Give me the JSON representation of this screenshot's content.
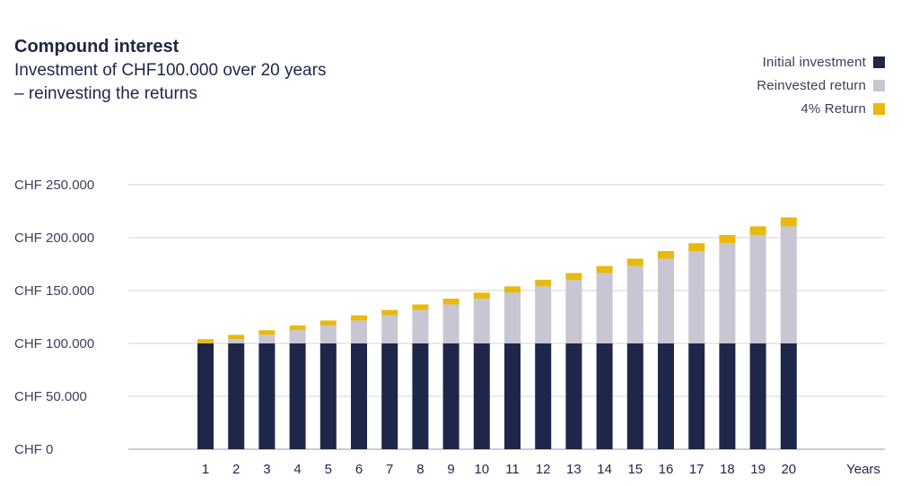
{
  "chart_data": {
    "type": "bar",
    "stacked": true,
    "title": "Compound interest",
    "subtitle_lines": [
      "Investment of CHF100.000 over 20 years",
      "– reinvesting the returns"
    ],
    "xlabel": "Years",
    "ylabel": "",
    "ylim": [
      0,
      250000
    ],
    "yticks": [
      0,
      50000,
      100000,
      150000,
      200000,
      250000
    ],
    "ytick_labels": [
      "CHF 0",
      "CHF 50.000",
      "CHF 100.000",
      "CHF 150.000",
      "CHF 200.000",
      "CHF 250.000"
    ],
    "grid": true,
    "legend_position": "top-right",
    "categories": [
      "1",
      "2",
      "3",
      "4",
      "5",
      "6",
      "7",
      "8",
      "9",
      "10",
      "11",
      "12",
      "13",
      "14",
      "15",
      "16",
      "17",
      "18",
      "19",
      "20"
    ],
    "series": [
      {
        "name": "Initial investment",
        "color": "#1e2749",
        "values": [
          100000,
          100000,
          100000,
          100000,
          100000,
          100000,
          100000,
          100000,
          100000,
          100000,
          100000,
          100000,
          100000,
          100000,
          100000,
          100000,
          100000,
          100000,
          100000,
          100000
        ]
      },
      {
        "name": "Reinvested return",
        "color": "#c8c6d3",
        "values": [
          0,
          4000,
          8160,
          12486,
          16986,
          21665,
          26532,
          31593,
          36857,
          42331,
          48024,
          53945,
          60103,
          66507,
          73168,
          80094,
          87298,
          94790,
          102582,
          110685
        ]
      },
      {
        "name": "4% Return",
        "color": "#e8b90e",
        "values": [
          4000,
          4160,
          4326,
          4499,
          4679,
          4867,
          5061,
          5264,
          5474,
          5693,
          5921,
          6158,
          6404,
          6660,
          6927,
          7204,
          7492,
          7792,
          8103,
          8427
        ]
      }
    ]
  },
  "legend_order": [
    0,
    1,
    2
  ]
}
